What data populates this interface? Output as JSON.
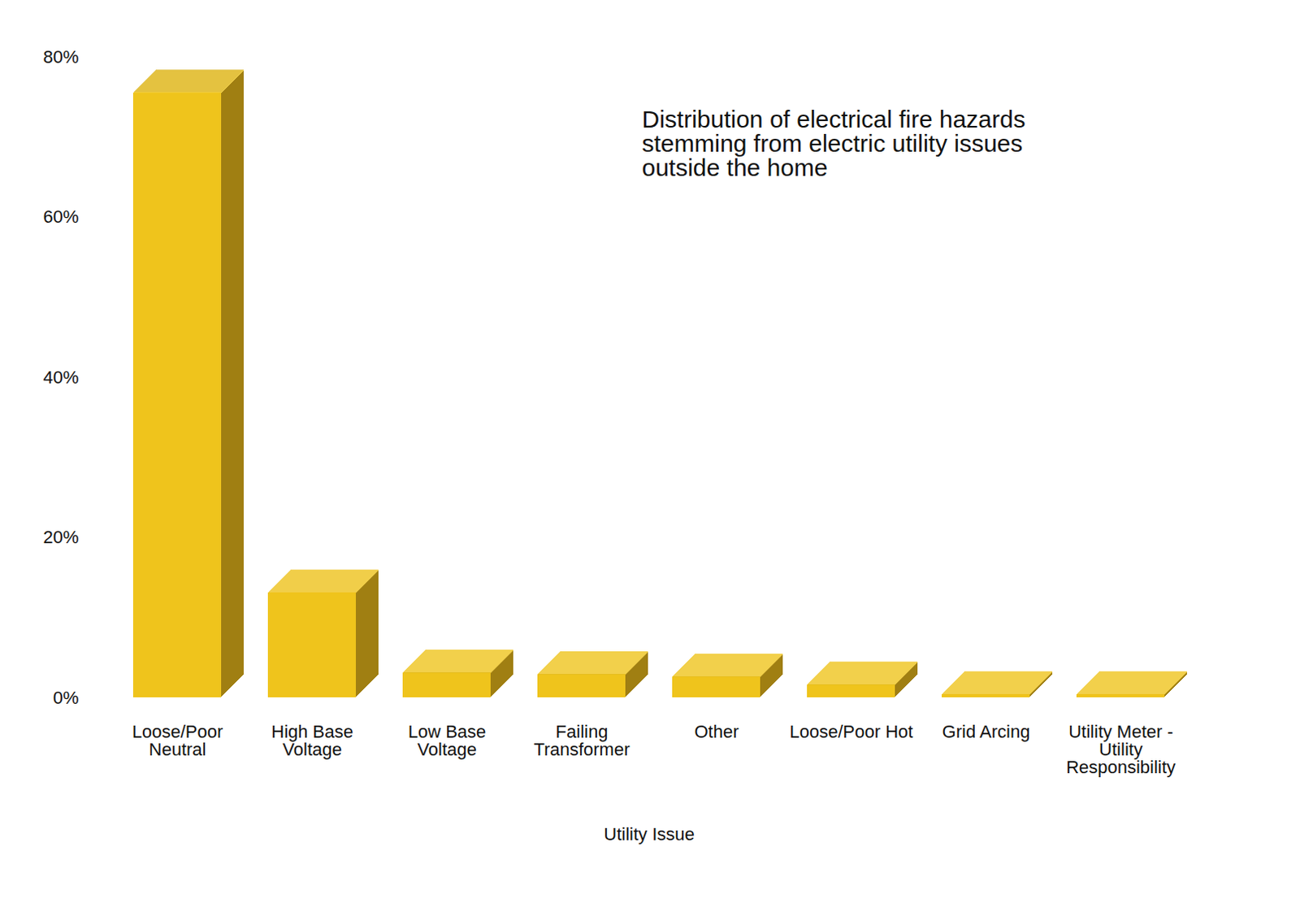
{
  "chart_data": {
    "type": "bar",
    "title": "Distribution of electrical fire hazards stemming from electric utility issues outside the home",
    "xlabel": "Utility Issue",
    "categories": [
      "Loose/Poor Neutral",
      "High Base Voltage",
      "Low Base Voltage",
      "Failing Transformer",
      "Other",
      "Loose/Poor Hot",
      "Grid Arcing",
      "Utility Meter - Utility Responsibility"
    ],
    "values": [
      75.5,
      13.1,
      3.1,
      2.9,
      2.6,
      1.6,
      0.4,
      0.4
    ],
    "color": "#efc41c",
    "ylim": [
      0,
      80
    ],
    "yticks": [
      {
        "value": 0,
        "label": "0%"
      },
      {
        "value": 20,
        "label": "20%"
      },
      {
        "value": 40,
        "label": "40%"
      },
      {
        "value": 60,
        "label": "60%"
      },
      {
        "value": 80,
        "label": "80%"
      }
    ],
    "grid": false
  }
}
